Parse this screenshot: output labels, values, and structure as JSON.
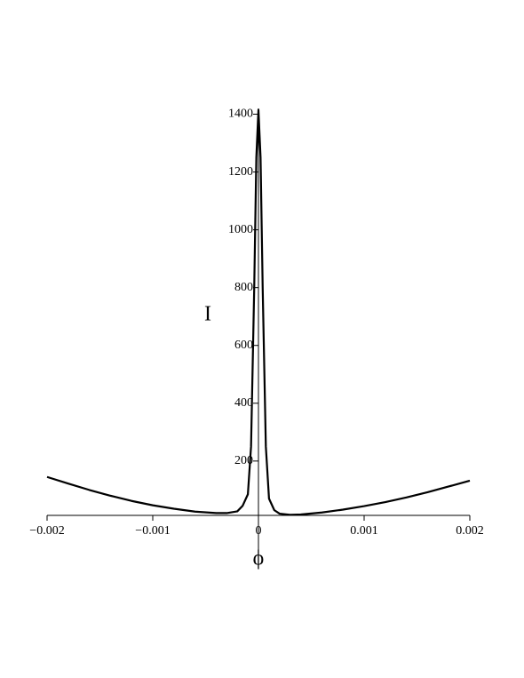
{
  "chart_data": {
    "type": "line",
    "xlabel": "ϕ",
    "ylabel": "I",
    "x": [
      -0.002,
      -0.0018,
      -0.0016,
      -0.0014,
      -0.0012,
      -0.001,
      -0.0008,
      -0.0006,
      -0.0004,
      -0.0003,
      -0.0002,
      -0.00015,
      -0.0001,
      -7e-05,
      -4e-05,
      -2e-05,
      0,
      2e-05,
      4e-05,
      7e-05,
      0.0001,
      0.00015,
      0.0002,
      0.0003,
      0.0004,
      0.0006,
      0.0008,
      0.001,
      0.0012,
      0.0014,
      0.0016,
      0.0018,
      0.002
    ],
    "values": [
      145,
      122,
      100,
      80,
      62,
      47,
      35,
      25,
      20,
      20,
      26,
      45,
      85,
      250,
      800,
      1250,
      1415,
      1250,
      800,
      250,
      70,
      30,
      18,
      14,
      15,
      22,
      32,
      44,
      58,
      74,
      92,
      112,
      132
    ],
    "color": "#000000",
    "xlim": [
      -0.002,
      0.002
    ],
    "ylim": [
      12,
      1420
    ],
    "xticks": [
      {
        "value": -0.002,
        "label": "−0.002"
      },
      {
        "value": -0.001,
        "label": "−0.001"
      },
      0,
      0.001,
      0.002
    ],
    "yticks": [
      200,
      400,
      600,
      800,
      1000,
      1200,
      1400
    ]
  }
}
